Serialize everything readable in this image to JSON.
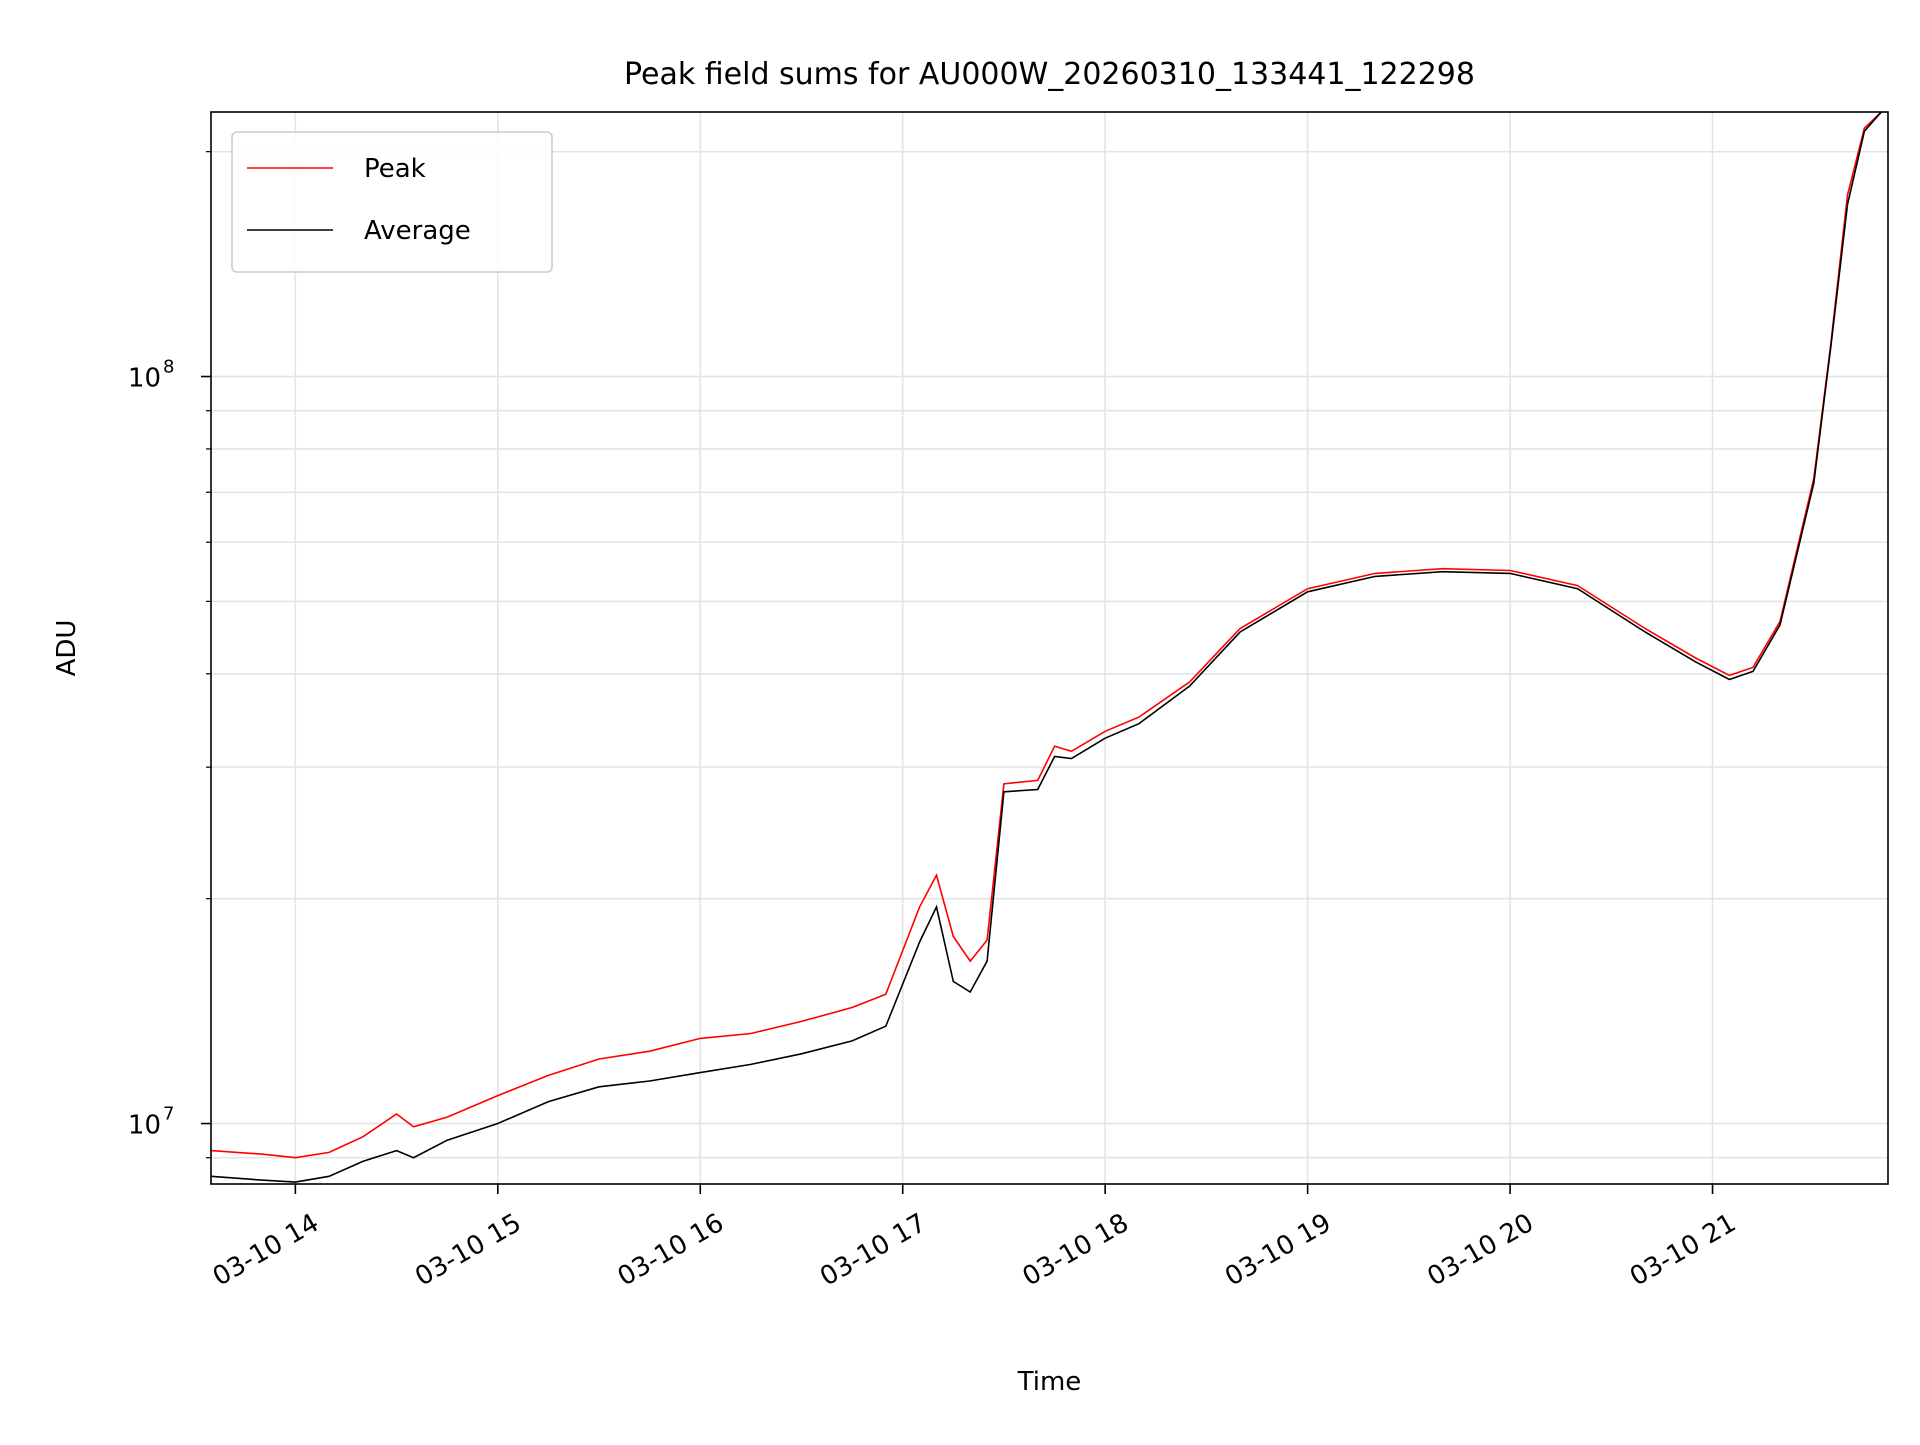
{
  "chart_data": {
    "type": "line",
    "title": "Peak field sums for AU000W_20260310_133441_122298",
    "xlabel": "Time",
    "ylabel": "ADU",
    "y_scale": "log",
    "ylim": [
      8300000,
      226000000
    ],
    "xlim": [
      "2026-03-10 13:35",
      "2026-03-10 21:52"
    ],
    "x_ticks": [
      "2026-03-10 14:00",
      "2026-03-10 15:00",
      "2026-03-10 16:00",
      "2026-03-10 17:00",
      "2026-03-10 18:00",
      "2026-03-10 19:00",
      "2026-03-10 20:00",
      "2026-03-10 21:00"
    ],
    "x_tick_labels": [
      "03-10 14",
      "03-10 15",
      "03-10 16",
      "03-10 17",
      "03-10 18",
      "03-10 19",
      "03-10 20",
      "03-10 21"
    ],
    "y_ticks": [
      10000000,
      100000000
    ],
    "y_tick_labels": [
      {
        "base": "10",
        "exp": "7"
      },
      {
        "base": "10",
        "exp": "8"
      }
    ],
    "grid": true,
    "legend_position": "top-left",
    "series": [
      {
        "name": "Peak",
        "color": "#ff0000",
        "x": [
          "2026-03-10 13:35",
          "2026-03-10 13:50",
          "2026-03-10 14:00",
          "2026-03-10 14:10",
          "2026-03-10 14:20",
          "2026-03-10 14:30",
          "2026-03-10 14:35",
          "2026-03-10 14:45",
          "2026-03-10 15:00",
          "2026-03-10 15:15",
          "2026-03-10 15:30",
          "2026-03-10 15:45",
          "2026-03-10 16:00",
          "2026-03-10 16:15",
          "2026-03-10 16:30",
          "2026-03-10 16:45",
          "2026-03-10 16:55",
          "2026-03-10 17:05",
          "2026-03-10 17:10",
          "2026-03-10 17:15",
          "2026-03-10 17:20",
          "2026-03-10 17:25",
          "2026-03-10 17:30",
          "2026-03-10 17:40",
          "2026-03-10 17:45",
          "2026-03-10 17:50",
          "2026-03-10 18:00",
          "2026-03-10 18:10",
          "2026-03-10 18:25",
          "2026-03-10 18:40",
          "2026-03-10 19:00",
          "2026-03-10 19:20",
          "2026-03-10 19:40",
          "2026-03-10 20:00",
          "2026-03-10 20:20",
          "2026-03-10 20:40",
          "2026-03-10 20:55",
          "2026-03-10 21:05",
          "2026-03-10 21:12",
          "2026-03-10 21:20",
          "2026-03-10 21:30",
          "2026-03-10 21:35",
          "2026-03-10 21:40",
          "2026-03-10 21:45",
          "2026-03-10 21:50"
        ],
        "y": [
          9200000,
          9100000,
          9000000,
          9150000,
          9600000,
          10300000,
          9900000,
          10200000,
          10900000,
          11600000,
          12200000,
          12500000,
          13000000,
          13200000,
          13700000,
          14300000,
          14900000,
          19500000,
          21500000,
          17800000,
          16500000,
          17600000,
          28500000,
          28800000,
          32000000,
          31500000,
          33500000,
          35000000,
          39000000,
          46000000,
          52000000,
          54500000,
          55300000,
          55000000,
          52500000,
          46000000,
          42000000,
          39800000,
          40800000,
          47000000,
          73000000,
          110000000,
          175000000,
          215000000,
          226000000
        ]
      },
      {
        "name": "Average",
        "color": "#000000",
        "x": [
          "2026-03-10 13:35",
          "2026-03-10 13:50",
          "2026-03-10 14:00",
          "2026-03-10 14:10",
          "2026-03-10 14:20",
          "2026-03-10 14:30",
          "2026-03-10 14:35",
          "2026-03-10 14:45",
          "2026-03-10 15:00",
          "2026-03-10 15:15",
          "2026-03-10 15:30",
          "2026-03-10 15:45",
          "2026-03-10 16:00",
          "2026-03-10 16:15",
          "2026-03-10 16:30",
          "2026-03-10 16:45",
          "2026-03-10 16:55",
          "2026-03-10 17:05",
          "2026-03-10 17:10",
          "2026-03-10 17:15",
          "2026-03-10 17:20",
          "2026-03-10 17:25",
          "2026-03-10 17:30",
          "2026-03-10 17:40",
          "2026-03-10 17:45",
          "2026-03-10 17:50",
          "2026-03-10 18:00",
          "2026-03-10 18:10",
          "2026-03-10 18:25",
          "2026-03-10 18:40",
          "2026-03-10 19:00",
          "2026-03-10 19:20",
          "2026-03-10 19:40",
          "2026-03-10 20:00",
          "2026-03-10 20:20",
          "2026-03-10 20:40",
          "2026-03-10 20:55",
          "2026-03-10 21:05",
          "2026-03-10 21:12",
          "2026-03-10 21:20",
          "2026-03-10 21:30",
          "2026-03-10 21:35",
          "2026-03-10 21:40",
          "2026-03-10 21:45",
          "2026-03-10 21:50"
        ],
        "y": [
          8500000,
          8400000,
          8350000,
          8500000,
          8900000,
          9200000,
          9000000,
          9500000,
          10000000,
          10700000,
          11200000,
          11400000,
          11700000,
          12000000,
          12400000,
          12900000,
          13500000,
          17500000,
          19500000,
          15500000,
          15000000,
          16500000,
          27800000,
          28000000,
          31000000,
          30800000,
          32800000,
          34300000,
          38500000,
          45500000,
          51500000,
          54000000,
          54800000,
          54500000,
          52000000,
          45500000,
          41500000,
          39300000,
          40300000,
          46500000,
          72000000,
          109000000,
          170000000,
          213000000,
          226000000
        ]
      }
    ]
  }
}
